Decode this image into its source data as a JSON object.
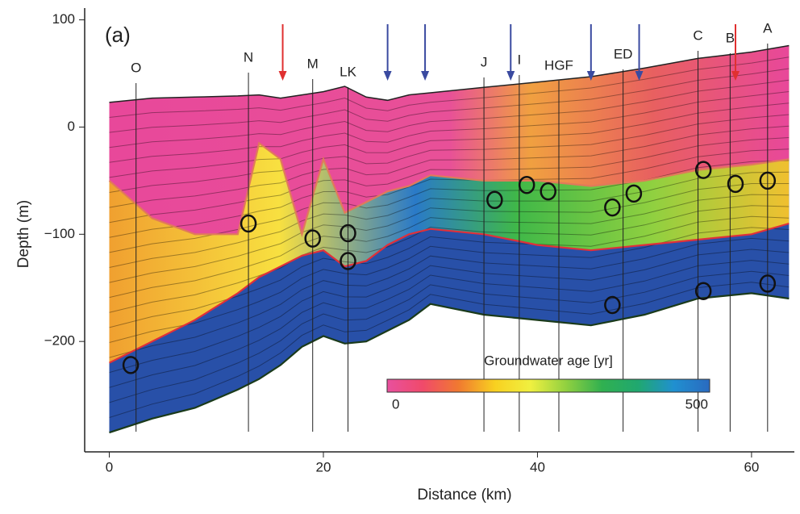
{
  "chart_data": {
    "type": "section",
    "panel_label": "(a)",
    "xlabel": "Distance (km)",
    "ylabel": "Depth (m)",
    "xlim": [
      -2.3,
      64
    ],
    "ylim": [
      -303,
      111
    ],
    "xticks": [
      0,
      20,
      40,
      60
    ],
    "yticks": [
      {
        "value": -200,
        "label": "−200"
      },
      {
        "value": -100,
        "label": "−100"
      },
      0,
      100
    ],
    "x": [
      0,
      4,
      8,
      12,
      14,
      16,
      18,
      20,
      22,
      24,
      26,
      28,
      30,
      35,
      40,
      45,
      50,
      55,
      60,
      63.5
    ],
    "series": [
      {
        "color": "#222222",
        "values": [
          23,
          27,
          28,
          29,
          30,
          27,
          30,
          33,
          38,
          28,
          25,
          30,
          32,
          37,
          42,
          47,
          55,
          64,
          70,
          76
        ]
      },
      {
        "color": "#e07a5a",
        "values": [
          -50,
          -85,
          -100,
          -100,
          -15,
          -30,
          -100,
          -30,
          -80,
          -70,
          -60,
          -55,
          -45,
          -50,
          -50,
          -55,
          -50,
          -40,
          -35,
          -30
        ]
      },
      {
        "color": "#e0303a",
        "values": [
          -220,
          -200,
          -180,
          -155,
          -140,
          -130,
          -120,
          -115,
          -130,
          -125,
          -110,
          -100,
          -95,
          -100,
          -110,
          -115,
          -110,
          -105,
          -100,
          -90
        ]
      },
      {
        "color": "#1a3a1a",
        "values": [
          -285,
          -272,
          -262,
          -245,
          -235,
          -222,
          -205,
          -195,
          -202,
          -200,
          -190,
          -180,
          -165,
          -175,
          -180,
          -185,
          -175,
          -160,
          -155,
          -160
        ]
      }
    ],
    "wells": [
      {
        "label": "O",
        "x": 2.5
      },
      {
        "label": "N",
        "x": 13
      },
      {
        "label": "M",
        "x": 19
      },
      {
        "label": "LK",
        "x": 22.3
      },
      {
        "label": "J",
        "x": 35
      },
      {
        "label": "I",
        "x": 38.3
      },
      {
        "label": "HGF",
        "x": 42
      },
      {
        "label": "ED",
        "x": 48
      },
      {
        "label": "C",
        "x": 55
      },
      {
        "label": "B",
        "x": 58
      },
      {
        "label": "A",
        "x": 61.5
      }
    ],
    "arrows": [
      {
        "x": 16.2,
        "color": "#e03030"
      },
      {
        "x": 26,
        "color": "#3a4aa0"
      },
      {
        "x": 29.5,
        "color": "#3a4aa0"
      },
      {
        "x": 37.5,
        "color": "#3a4aa0"
      },
      {
        "x": 45,
        "color": "#3a4aa0"
      },
      {
        "x": 49.5,
        "color": "#3a4aa0"
      },
      {
        "x": 58.5,
        "color": "#e03030"
      }
    ],
    "samples": {
      "x": [
        2,
        13,
        19,
        22.3,
        22.3,
        36,
        39,
        41,
        47,
        49,
        55.5,
        58.5,
        61.5,
        55.5,
        61.5,
        47
      ],
      "y": [
        -222,
        -90,
        -104,
        -99,
        -125,
        -68,
        -54,
        -60,
        -75,
        -62,
        -40,
        -53,
        -50,
        -153,
        -146,
        -166
      ]
    },
    "colorbar": {
      "title": "Groundwater age [yr]",
      "range": [
        0,
        500
      ],
      "ticks": [
        0,
        500
      ],
      "colors": [
        "#e8509e",
        "#f04a6a",
        "#f07a30",
        "#f8d020",
        "#f0f040",
        "#90d040",
        "#30b050",
        "#20a870",
        "#2090d0",
        "#2a6ac0"
      ]
    }
  }
}
